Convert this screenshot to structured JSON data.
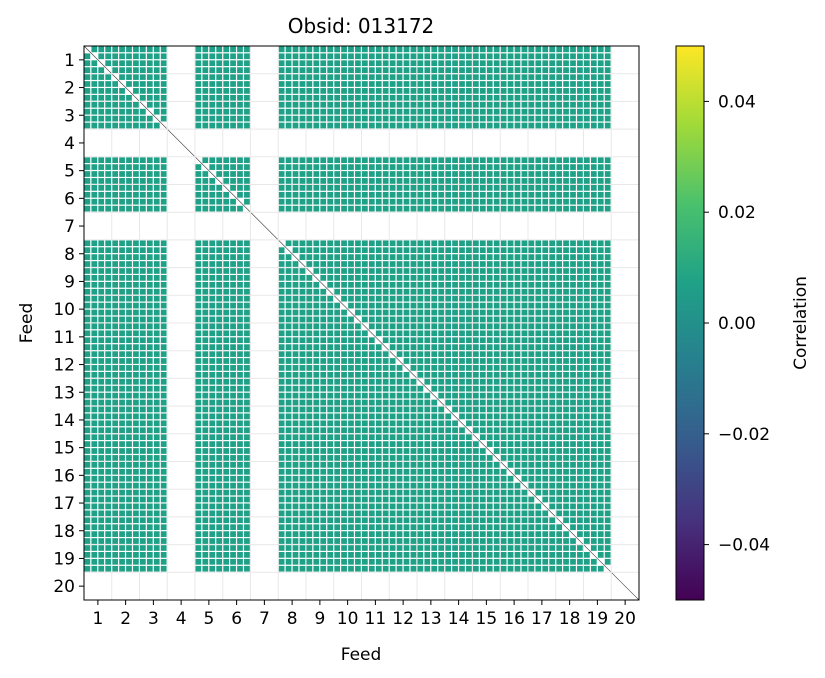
{
  "chart_data": {
    "type": "heatmap",
    "title": "Obsid: 013172",
    "xlabel": "Feed",
    "ylabel": "Feed",
    "colorbar_label": "Correlation",
    "colormap": "viridis",
    "vmin": -0.05,
    "vmax": 0.05,
    "x_ticks": [
      "1",
      "2",
      "3",
      "4",
      "5",
      "6",
      "7",
      "8",
      "9",
      "10",
      "11",
      "12",
      "13",
      "14",
      "15",
      "16",
      "17",
      "18",
      "19",
      "20"
    ],
    "y_ticks": [
      "1",
      "2",
      "3",
      "4",
      "5",
      "6",
      "7",
      "8",
      "9",
      "10",
      "11",
      "12",
      "13",
      "14",
      "15",
      "16",
      "17",
      "18",
      "19",
      "20"
    ],
    "colorbar_ticks": [
      "0.04",
      "0.02",
      "0.00",
      "−0.02",
      "−0.04"
    ],
    "colorbar_tick_values": [
      0.04,
      0.02,
      0.0,
      -0.02,
      -0.04
    ],
    "feeds": [
      1,
      2,
      3,
      4,
      5,
      6,
      7,
      8,
      9,
      10,
      11,
      12,
      13,
      14,
      15,
      16,
      17,
      18,
      19,
      20
    ],
    "blank_feeds": [
      4,
      7,
      20
    ],
    "sidebands_per_feed": 4,
    "off_diagonal_value": 0.0,
    "grid": true,
    "colors": {
      "cell": "#21918c",
      "diagonal": "#3a3a3a",
      "grid": "#e8e8e8",
      "viridis": [
        "#440154",
        "#46327e",
        "#365c8d",
        "#277f8e",
        "#1fa187",
        "#4ac16d",
        "#a0da39",
        "#fde725"
      ]
    }
  }
}
